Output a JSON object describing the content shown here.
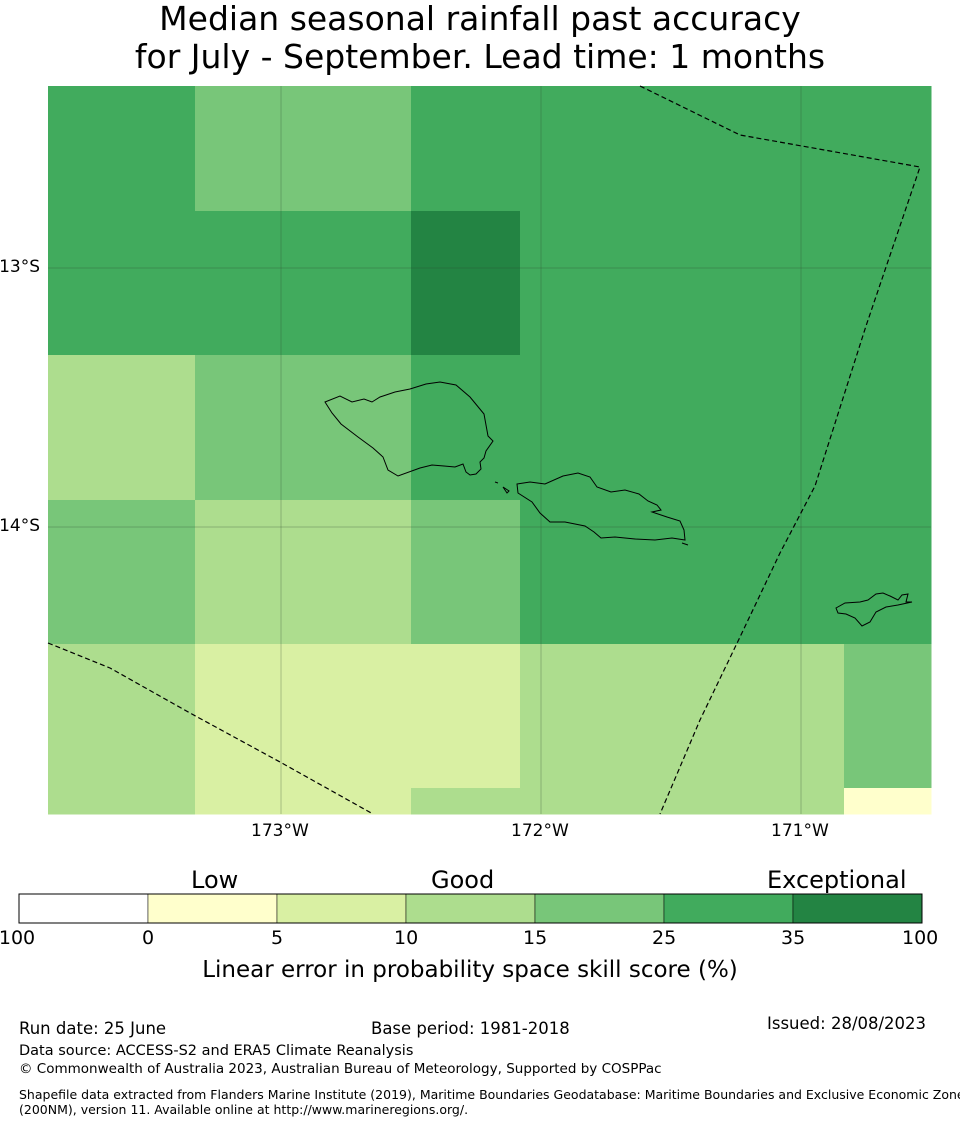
{
  "title_line1": "Median seasonal rainfall past accuracy",
  "title_line2": "for July - September. Lead time: 1 months",
  "lat_labels": [
    "13°S",
    "14°S"
  ],
  "lon_labels": [
    "173°W",
    "172°W",
    "171°W"
  ],
  "colorbar": {
    "category_labels": [
      "Low",
      "Good",
      "Exceptional"
    ],
    "ticks": [
      "-100",
      "0",
      "5",
      "10",
      "15",
      "25",
      "35",
      "100"
    ],
    "colors": [
      "#ffffff",
      "#ffffcc",
      "#d9f0a3",
      "#addd8e",
      "#78c679",
      "#41ab5d",
      "#238443"
    ],
    "xlabel": "Linear error in probability space skill score (%)"
  },
  "footer": {
    "run_date": "Run date: 25 June",
    "base_period": "Base period: 1981-2018",
    "issued": "Issued: 28/08/2023",
    "data_source": "Data source: ACCESS-S2 and ERA5 Climate Reanalysis",
    "copyright": "© Commonwealth of Australia 2023, Australian Bureau of Meteorology, Supported by COSPPac",
    "shapefile_line1": "Shapefile data extracted from Flanders Marine Institute (2019), Maritime Boundaries Geodatabase: Maritime Boundaries and Exclusive Economic Zones",
    "shapefile_line2": "(200NM), version 11. Available online at http://www.marineregions.org/."
  },
  "map_data": {
    "type": "heatmap",
    "value_classes": [
      "-100-0",
      "0-5",
      "5-10",
      "10-15",
      "15-25",
      "25-35",
      "35-100"
    ],
    "grid": [
      [
        5,
        4,
        4,
        5,
        5,
        5,
        5
      ],
      [
        5,
        5,
        5,
        6,
        5,
        5,
        5
      ],
      [
        3,
        4,
        4,
        5,
        5,
        5,
        5
      ],
      [
        4,
        3,
        3,
        4,
        5,
        5,
        5
      ],
      [
        3,
        2,
        2,
        2,
        3,
        3,
        4
      ],
      [
        3,
        2,
        2,
        3,
        3,
        3,
        1
      ]
    ]
  }
}
